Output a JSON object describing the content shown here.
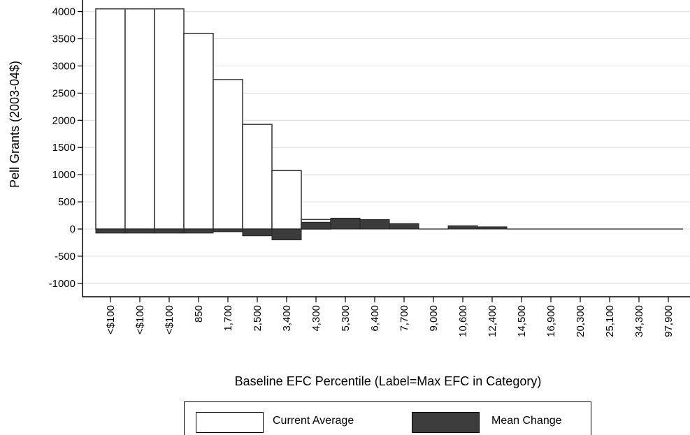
{
  "chart_data": {
    "type": "bar",
    "ylabel": "Pell Grants (2003-04$)",
    "xlabel": "Baseline EFC Percentile (Label=Max EFC in Category)",
    "categories": [
      "<$100",
      "<$100",
      "<$100",
      "850",
      "1,700",
      "2,500",
      "3,400",
      "4,300",
      "5,300",
      "6,400",
      "7,700",
      "9,000",
      "10,600",
      "12,400",
      "14,500",
      "16,900",
      "20,300",
      "25,100",
      "34,300",
      "97,900"
    ],
    "yticks": [
      4000,
      3500,
      3000,
      2500,
      2000,
      1500,
      1000,
      500,
      0,
      -500,
      -1000
    ],
    "ylim": [
      -1150,
      4200
    ],
    "grid": true,
    "legend_position": "bottom",
    "series": [
      {
        "name": "Current Average",
        "color": "#ffffff",
        "values": [
          4050,
          4050,
          4050,
          3600,
          2750,
          1925,
          1075,
          175,
          0,
          0,
          0,
          0,
          0,
          0,
          0,
          0,
          0,
          0,
          0,
          0
        ]
      },
      {
        "name": "Mean Change",
        "color": "#3c3c3c",
        "values": [
          -75,
          -75,
          -75,
          -75,
          -50,
          -125,
          -200,
          125,
          200,
          175,
          100,
          0,
          60,
          40,
          0,
          0,
          0,
          0,
          0,
          0
        ]
      }
    ]
  }
}
